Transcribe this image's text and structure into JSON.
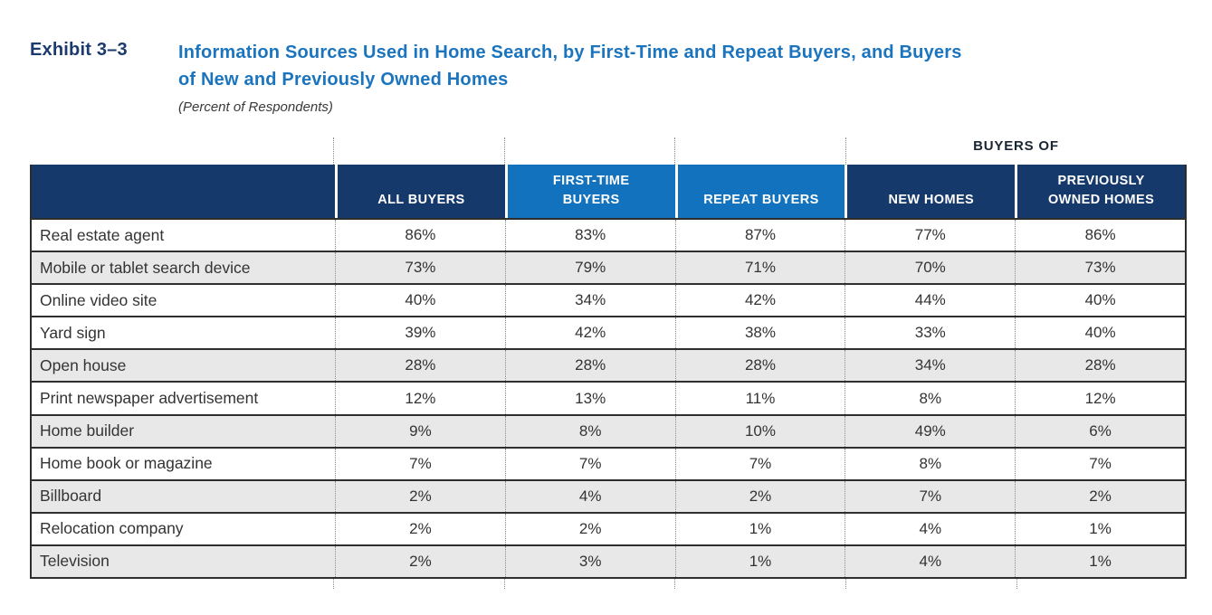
{
  "exhibit": {
    "label": "Exhibit 3–3",
    "title_line1": "Information Sources Used in Home Search, by First-Time and Repeat Buyers, and Buyers",
    "title_line2": "of New and Previously Owned Homes",
    "subtitle": "(Percent of Respondents)"
  },
  "table": {
    "group_header": "BUYERS OF",
    "columns": [
      {
        "label": "ALL BUYERS",
        "lines": [
          "ALL BUYERS"
        ]
      },
      {
        "label": "FIRST-TIME BUYERS",
        "lines": [
          "FIRST-TIME",
          "BUYERS"
        ]
      },
      {
        "label": "REPEAT BUYERS",
        "lines": [
          "REPEAT BUYERS"
        ]
      },
      {
        "label": "NEW HOMES",
        "lines": [
          "NEW HOMES"
        ]
      },
      {
        "label": "PREVIOUSLY OWNED HOMES",
        "lines": [
          "PREVIOUSLY",
          "OWNED HOMES"
        ]
      }
    ],
    "rows": [
      {
        "label": "Real estate agent",
        "values": [
          "86%",
          "83%",
          "87%",
          "77%",
          "86%"
        ]
      },
      {
        "label": "Mobile or tablet search device",
        "values": [
          "73%",
          "79%",
          "71%",
          "70%",
          "73%"
        ]
      },
      {
        "label": "Online video site",
        "values": [
          "40%",
          "34%",
          "42%",
          "44%",
          "40%"
        ]
      },
      {
        "label": "Yard sign",
        "values": [
          "39%",
          "42%",
          "38%",
          "33%",
          "40%"
        ]
      },
      {
        "label": "Open house",
        "values": [
          "28%",
          "28%",
          "28%",
          "34%",
          "28%"
        ]
      },
      {
        "label": "Print newspaper advertisement",
        "values": [
          "12%",
          "13%",
          "11%",
          "8%",
          "12%"
        ]
      },
      {
        "label": "Home builder",
        "values": [
          "9%",
          "8%",
          "10%",
          "49%",
          "6%"
        ]
      },
      {
        "label": "Home book or magazine",
        "values": [
          "7%",
          "7%",
          "7%",
          "8%",
          "7%"
        ]
      },
      {
        "label": "Billboard",
        "values": [
          "2%",
          "4%",
          "2%",
          "7%",
          "2%"
        ]
      },
      {
        "label": "Relocation company",
        "values": [
          "2%",
          "2%",
          "1%",
          "4%",
          "1%"
        ]
      },
      {
        "label": "Television",
        "values": [
          "2%",
          "3%",
          "1%",
          "4%",
          "1%"
        ]
      }
    ]
  },
  "colors": {
    "header_navy": "#16396B",
    "header_light_blue": "#1272BE",
    "title_blue": "#1B74BE",
    "exhibit_label_navy": "#1C3A6E",
    "group_header_text": "#1A2533",
    "shaded_row": "#E8E8E8",
    "row_border": "#2E2E2E",
    "dotted_grid": "#8A8A8A",
    "body_text": "#333333"
  }
}
